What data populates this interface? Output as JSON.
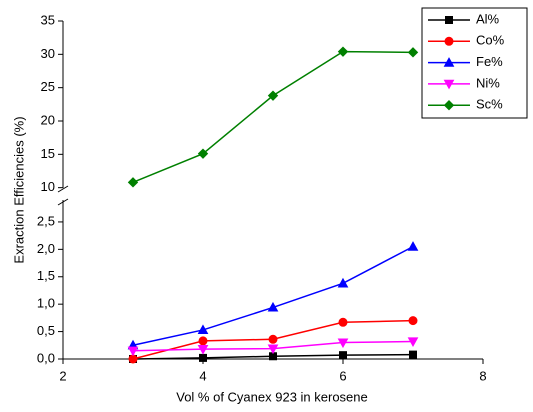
{
  "chart_data": {
    "type": "line",
    "x_label": "Vol % of Cyanex 923 in kerosene",
    "y_label": "Exraction Efficiencies (%)",
    "x": [
      3,
      4,
      5,
      6,
      7
    ],
    "xlim": [
      2,
      8
    ],
    "xticks": [
      2,
      4,
      6,
      8
    ],
    "ylim": [
      0,
      2.9
    ],
    "yticks": [
      {
        "value": 0,
        "label": "0,0"
      },
      {
        "value": 0.5,
        "label": "0,5"
      },
      {
        "value": 1,
        "label": "1,0"
      },
      {
        "value": 1.5,
        "label": "1,5"
      },
      {
        "value": 2,
        "label": "2,0"
      },
      {
        "value": 2.5,
        "label": "2,5"
      }
    ],
    "y2lim": [
      9.2,
      35
    ],
    "y2ticks": [
      10,
      15,
      20,
      25,
      30,
      35
    ],
    "legend": "top-right",
    "series": [
      {
        "name": "Al%",
        "color": "#000000",
        "marker": "square",
        "values": [
          0.0,
          0.02,
          0.05,
          0.07,
          0.08
        ]
      },
      {
        "name": "Co%",
        "color": "#ff0000",
        "marker": "circle",
        "values": [
          0.0,
          0.33,
          0.36,
          0.67,
          0.7
        ]
      },
      {
        "name": "Fe%",
        "color": "#0000ff",
        "marker": "triangle-up",
        "values": [
          0.25,
          0.53,
          0.94,
          1.38,
          2.05
        ]
      },
      {
        "name": "Ni%",
        "color": "#ff00ff",
        "marker": "triangle-down",
        "values": [
          0.15,
          0.18,
          0.19,
          0.3,
          0.32
        ]
      },
      {
        "name": "Sc%",
        "color": "#008000",
        "marker": "diamond",
        "axis": "y2",
        "values": [
          10.8,
          15.1,
          23.8,
          30.4,
          30.3
        ]
      }
    ]
  }
}
